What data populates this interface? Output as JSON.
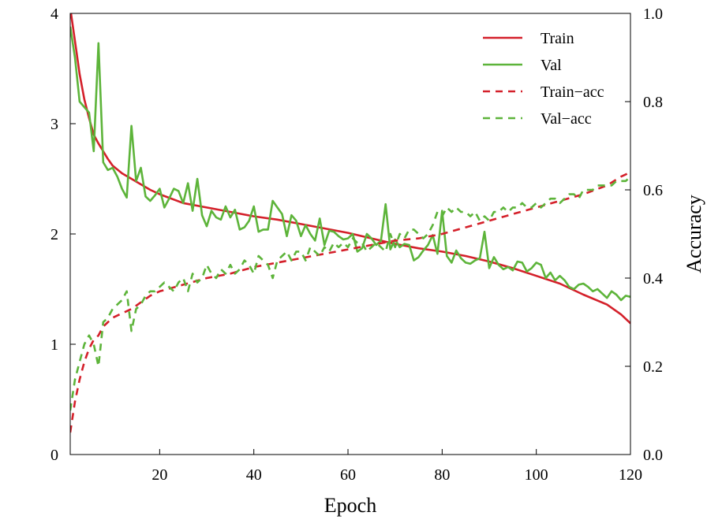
{
  "chart_data": {
    "type": "line",
    "xlabel": "Epoch",
    "ylabel": "",
    "y2label": "Accuracy",
    "xlim": [
      1,
      120
    ],
    "ylim": [
      0,
      4
    ],
    "y2lim": [
      0.0,
      1.0
    ],
    "xticks": [
      20,
      40,
      60,
      80,
      100,
      120
    ],
    "yticks": [
      0,
      1,
      2,
      3,
      4
    ],
    "y2ticks": [
      "0.0",
      "0.2",
      "0.4",
      "0.6",
      "0.8",
      "1.0"
    ],
    "legend_position": "top-right",
    "grid": false,
    "series": [
      {
        "name": "Train",
        "axis": "left",
        "style": "solid",
        "color": "#d4202a",
        "x": [
          1,
          2,
          3,
          4,
          5,
          6,
          7,
          8,
          9,
          10,
          12,
          14,
          16,
          18,
          20,
          25,
          30,
          35,
          40,
          45,
          50,
          55,
          60,
          65,
          70,
          75,
          80,
          85,
          90,
          95,
          100,
          105,
          110,
          115,
          118,
          120
        ],
        "y": [
          4.05,
          3.75,
          3.45,
          3.22,
          3.05,
          2.9,
          2.82,
          2.75,
          2.68,
          2.62,
          2.55,
          2.5,
          2.45,
          2.4,
          2.36,
          2.28,
          2.24,
          2.2,
          2.16,
          2.13,
          2.09,
          2.05,
          2.01,
          1.96,
          1.91,
          1.87,
          1.84,
          1.8,
          1.75,
          1.69,
          1.62,
          1.55,
          1.45,
          1.36,
          1.27,
          1.19
        ]
      },
      {
        "name": "Val",
        "axis": "left",
        "style": "solid",
        "color": "#5db43a",
        "x": [
          1,
          2,
          3,
          4,
          5,
          6,
          7,
          8,
          9,
          10,
          11,
          12,
          13,
          14,
          15,
          16,
          17,
          18,
          19,
          20,
          21,
          22,
          23,
          24,
          25,
          26,
          27,
          28,
          29,
          30,
          31,
          32,
          33,
          34,
          35,
          36,
          37,
          38,
          39,
          40,
          41,
          42,
          43,
          44,
          45,
          46,
          47,
          48,
          49,
          50,
          51,
          52,
          53,
          54,
          55,
          56,
          57,
          58,
          59,
          60,
          61,
          62,
          63,
          64,
          65,
          66,
          67,
          68,
          69,
          70,
          71,
          72,
          73,
          74,
          75,
          76,
          77,
          78,
          79,
          80,
          81,
          82,
          83,
          84,
          85,
          86,
          87,
          88,
          89,
          90,
          91,
          92,
          93,
          94,
          95,
          96,
          97,
          98,
          99,
          100,
          101,
          102,
          103,
          104,
          105,
          106,
          107,
          108,
          109,
          110,
          111,
          112,
          113,
          114,
          115,
          116,
          117,
          118,
          119,
          120
        ],
        "y": [
          3.88,
          3.6,
          3.2,
          3.15,
          3.1,
          2.75,
          3.73,
          2.65,
          2.58,
          2.6,
          2.52,
          2.41,
          2.33,
          2.98,
          2.48,
          2.6,
          2.34,
          2.3,
          2.35,
          2.41,
          2.24,
          2.32,
          2.41,
          2.39,
          2.28,
          2.46,
          2.21,
          2.5,
          2.17,
          2.07,
          2.21,
          2.15,
          2.13,
          2.25,
          2.15,
          2.22,
          2.04,
          2.06,
          2.12,
          2.25,
          2.02,
          2.04,
          2.04,
          2.3,
          2.24,
          2.18,
          1.98,
          2.17,
          2.12,
          1.98,
          2.08,
          2.0,
          1.94,
          2.14,
          1.9,
          2.03,
          2.02,
          1.98,
          1.95,
          1.96,
          2.0,
          1.84,
          1.87,
          2.0,
          1.96,
          1.9,
          1.94,
          2.27,
          1.86,
          1.95,
          1.88,
          1.91,
          1.9,
          1.76,
          1.79,
          1.85,
          1.9,
          1.99,
          1.82,
          2.21,
          1.8,
          1.74,
          1.85,
          1.78,
          1.74,
          1.73,
          1.76,
          1.78,
          2.02,
          1.69,
          1.79,
          1.72,
          1.68,
          1.7,
          1.67,
          1.75,
          1.74,
          1.66,
          1.69,
          1.74,
          1.72,
          1.6,
          1.65,
          1.58,
          1.62,
          1.58,
          1.52,
          1.5,
          1.54,
          1.55,
          1.52,
          1.48,
          1.5,
          1.46,
          1.42,
          1.48,
          1.45,
          1.4,
          1.44,
          1.43
        ]
      },
      {
        "name": "Train−acc",
        "axis": "right",
        "style": "dashed",
        "color": "#d4202a",
        "x": [
          1,
          2,
          3,
          4,
          5,
          6,
          7,
          8,
          9,
          10,
          12,
          14,
          16,
          18,
          20,
          25,
          30,
          35,
          40,
          45,
          50,
          55,
          60,
          65,
          70,
          75,
          80,
          85,
          90,
          95,
          100,
          105,
          110,
          115,
          118,
          120
        ],
        "y": [
          0.05,
          0.12,
          0.17,
          0.21,
          0.24,
          0.26,
          0.27,
          0.29,
          0.3,
          0.31,
          0.32,
          0.33,
          0.345,
          0.36,
          0.37,
          0.385,
          0.4,
          0.41,
          0.425,
          0.435,
          0.445,
          0.455,
          0.465,
          0.475,
          0.485,
          0.49,
          0.5,
          0.515,
          0.53,
          0.545,
          0.56,
          0.575,
          0.59,
          0.61,
          0.63,
          0.64
        ]
      },
      {
        "name": "Val−acc",
        "axis": "right",
        "style": "dashed",
        "color": "#5db43a",
        "x": [
          1,
          2,
          3,
          4,
          5,
          6,
          7,
          8,
          9,
          10,
          11,
          12,
          13,
          14,
          15,
          16,
          17,
          18,
          19,
          20,
          21,
          22,
          23,
          24,
          25,
          26,
          27,
          28,
          29,
          30,
          31,
          32,
          33,
          34,
          35,
          36,
          37,
          38,
          39,
          40,
          41,
          42,
          43,
          44,
          45,
          46,
          47,
          48,
          49,
          50,
          51,
          52,
          53,
          54,
          55,
          56,
          57,
          58,
          59,
          60,
          61,
          62,
          63,
          64,
          65,
          66,
          67,
          68,
          69,
          70,
          71,
          72,
          73,
          74,
          75,
          76,
          77,
          78,
          79,
          80,
          81,
          82,
          83,
          84,
          85,
          86,
          87,
          88,
          89,
          90,
          91,
          92,
          93,
          94,
          95,
          96,
          97,
          98,
          99,
          100,
          101,
          102,
          103,
          104,
          105,
          106,
          107,
          108,
          109,
          110,
          111,
          112,
          113,
          114,
          115,
          116,
          117,
          118,
          119,
          120
        ],
        "y": [
          0.1,
          0.17,
          0.21,
          0.25,
          0.27,
          0.25,
          0.2,
          0.3,
          0.31,
          0.33,
          0.34,
          0.35,
          0.37,
          0.28,
          0.33,
          0.34,
          0.36,
          0.37,
          0.37,
          0.38,
          0.39,
          0.38,
          0.37,
          0.39,
          0.4,
          0.37,
          0.41,
          0.39,
          0.4,
          0.43,
          0.41,
          0.4,
          0.42,
          0.41,
          0.43,
          0.41,
          0.42,
          0.44,
          0.43,
          0.41,
          0.45,
          0.44,
          0.43,
          0.4,
          0.44,
          0.45,
          0.46,
          0.44,
          0.46,
          0.46,
          0.44,
          0.47,
          0.46,
          0.45,
          0.47,
          0.46,
          0.48,
          0.47,
          0.48,
          0.47,
          0.49,
          0.48,
          0.48,
          0.46,
          0.47,
          0.48,
          0.47,
          0.46,
          0.5,
          0.47,
          0.5,
          0.49,
          0.51,
          0.51,
          0.5,
          0.49,
          0.5,
          0.52,
          0.55,
          0.54,
          0.56,
          0.55,
          0.56,
          0.55,
          0.55,
          0.54,
          0.55,
          0.53,
          0.54,
          0.53,
          0.55,
          0.55,
          0.56,
          0.55,
          0.56,
          0.56,
          0.57,
          0.56,
          0.56,
          0.57,
          0.56,
          0.57,
          0.58,
          0.58,
          0.57,
          0.58,
          0.59,
          0.59,
          0.58,
          0.6,
          0.6,
          0.6,
          0.61,
          0.61,
          0.61,
          0.61,
          0.62,
          0.62,
          0.62,
          0.63
        ]
      }
    ]
  }
}
